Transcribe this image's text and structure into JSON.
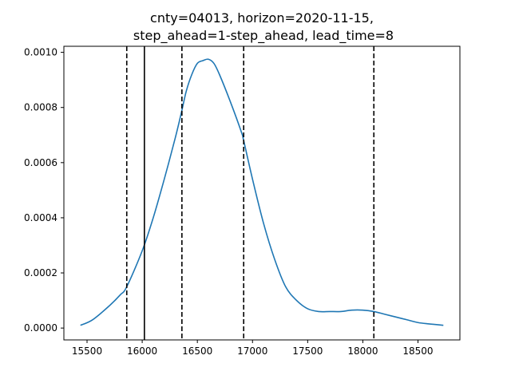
{
  "chart_data": {
    "type": "line",
    "title_lines": [
      "cnty=04013, horizon=2020-11-15,",
      "step_ahead=1-step_ahead, lead_time=8"
    ],
    "xlabel": "",
    "ylabel": "",
    "xlim": [
      15290,
      18880
    ],
    "ylim": [
      -4.3e-05,
      0.001022
    ],
    "x_ticks": [
      15500,
      16000,
      16500,
      17000,
      17500,
      18000,
      18500
    ],
    "x_tick_labels": [
      "15500",
      "16000",
      "16500",
      "17000",
      "17500",
      "18000",
      "18500"
    ],
    "y_ticks": [
      0.0,
      0.0002,
      0.0004,
      0.0006,
      0.0008,
      0.001
    ],
    "y_tick_labels": [
      "0.0000",
      "0.0002",
      "0.0004",
      "0.0006",
      "0.0008",
      "0.0010"
    ],
    "grid": false,
    "series": [
      {
        "color": "#1f77b4",
        "x": [
          15440,
          15550,
          15700,
          15800,
          15860,
          16000,
          16100,
          16200,
          16300,
          16360,
          16400,
          16450,
          16500,
          16550,
          16600,
          16650,
          16700,
          16800,
          16900,
          16920,
          17000,
          17100,
          17200,
          17300,
          17400,
          17500,
          17600,
          17700,
          17800,
          17900,
          18000,
          18100,
          18200,
          18300,
          18400,
          18500,
          18600,
          18730
        ],
        "y": [
          1e-05,
          3e-05,
          8e-05,
          0.00012,
          0.00015,
          0.00028,
          0.0004,
          0.00054,
          0.00069,
          0.00079,
          0.00086,
          0.00092,
          0.00096,
          0.00097,
          0.000975,
          0.00096,
          0.00092,
          0.00082,
          0.00071,
          0.00068,
          0.00054,
          0.00038,
          0.00025,
          0.00015,
          0.0001,
          7e-05,
          6e-05,
          6e-05,
          6e-05,
          6.5e-05,
          6.5e-05,
          6e-05,
          5e-05,
          4e-05,
          3e-05,
          2e-05,
          1.5e-05,
          1e-05
        ]
      }
    ],
    "vlines_dashed": [
      15860,
      16360,
      16920,
      18100
    ],
    "vline_solid": 16020,
    "line_colors": {
      "curve": "#1f77b4",
      "vlines": "#000000",
      "axes": "#000000"
    }
  }
}
